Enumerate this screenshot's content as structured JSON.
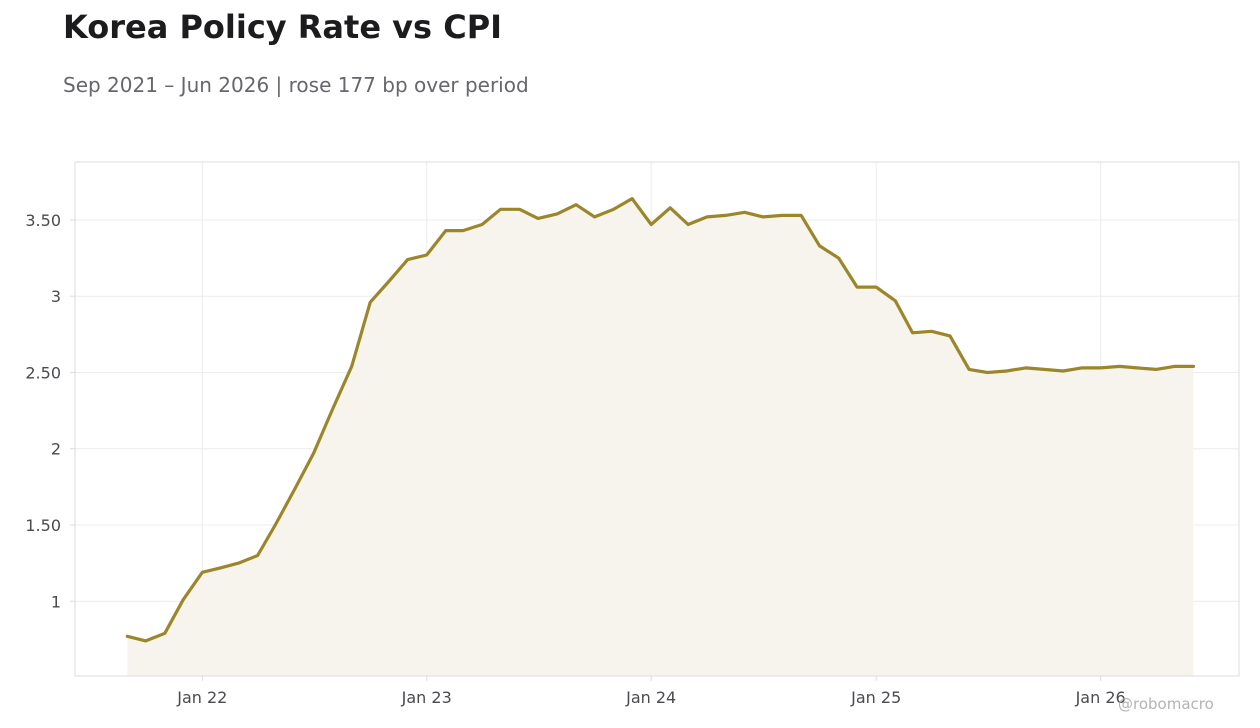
{
  "title": "Korea Policy Rate vs CPI",
  "subtitle": "Sep 2021 – Jun 2026 | rose 177 bp over period",
  "watermark": "@robomacro",
  "colors": {
    "line": "#9c862a",
    "fill": "#f7f4ee",
    "grid": "#ececec",
    "frame": "#dcdcdc",
    "text": "#4a4a4f"
  },
  "chart_data": {
    "type": "area",
    "title": "Korea Policy Rate vs CPI",
    "subtitle": "Sep 2021 – Jun 2026 | rose 177 bp over period",
    "xlabel": "",
    "ylabel": "",
    "grid": true,
    "xlim": [
      "2021-06-08",
      "2026-08-14"
    ],
    "ylim": [
      0.51,
      3.88
    ],
    "x_ticks": [
      {
        "date": "2022-01-01",
        "label": "Jan 22"
      },
      {
        "date": "2023-01-01",
        "label": "Jan 23"
      },
      {
        "date": "2024-01-01",
        "label": "Jan 24"
      },
      {
        "date": "2025-01-01",
        "label": "Jan 25"
      },
      {
        "date": "2026-01-01",
        "label": "Jan 26"
      }
    ],
    "y_ticks": [
      {
        "value": 1,
        "label": "1"
      },
      {
        "value": 1.5,
        "label": "1.50"
      },
      {
        "value": 2,
        "label": "2"
      },
      {
        "value": 2.5,
        "label": "2.50"
      },
      {
        "value": 3,
        "label": "3"
      },
      {
        "value": 3.5,
        "label": "3.50"
      }
    ],
    "series": [
      {
        "x": [
          "2021-09-01",
          "2021-10-01",
          "2021-11-01",
          "2021-12-01",
          "2022-01-01",
          "2022-02-01",
          "2022-03-01",
          "2022-04-01",
          "2022-05-01",
          "2022-06-01",
          "2022-07-01",
          "2022-08-01",
          "2022-09-01",
          "2022-10-01",
          "2022-11-01",
          "2022-12-01",
          "2023-01-01",
          "2023-02-01",
          "2023-03-01",
          "2023-04-01",
          "2023-05-01",
          "2023-06-01",
          "2023-07-01",
          "2023-08-01",
          "2023-09-01",
          "2023-10-01",
          "2023-11-01",
          "2023-12-01",
          "2024-01-01",
          "2024-02-01",
          "2024-03-01",
          "2024-04-01",
          "2024-05-01",
          "2024-06-01",
          "2024-07-01",
          "2024-08-01",
          "2024-09-01",
          "2024-10-01",
          "2024-11-01",
          "2024-12-01",
          "2025-01-01",
          "2025-02-01",
          "2025-03-01",
          "2025-04-01",
          "2025-05-01",
          "2025-06-01",
          "2025-07-01",
          "2025-08-01",
          "2025-09-01",
          "2025-10-01",
          "2025-11-01",
          "2025-12-01",
          "2026-01-01",
          "2026-02-01",
          "2026-03-01",
          "2026-04-01",
          "2026-05-01",
          "2026-06-01"
        ],
        "y": [
          0.77,
          0.74,
          0.79,
          1.01,
          1.19,
          1.22,
          1.25,
          1.3,
          1.51,
          1.74,
          1.97,
          2.26,
          2.54,
          2.96,
          3.1,
          3.24,
          3.27,
          3.43,
          3.43,
          3.47,
          3.57,
          3.57,
          3.51,
          3.54,
          3.6,
          3.52,
          3.57,
          3.64,
          3.47,
          3.58,
          3.47,
          3.52,
          3.53,
          3.55,
          3.52,
          3.53,
          3.53,
          3.33,
          3.25,
          3.06,
          3.06,
          2.97,
          2.76,
          2.77,
          2.74,
          2.52,
          2.5,
          2.51,
          2.53,
          2.52,
          2.51,
          2.53,
          2.53,
          2.54,
          2.53,
          2.52,
          2.54,
          2.54
        ]
      }
    ]
  }
}
